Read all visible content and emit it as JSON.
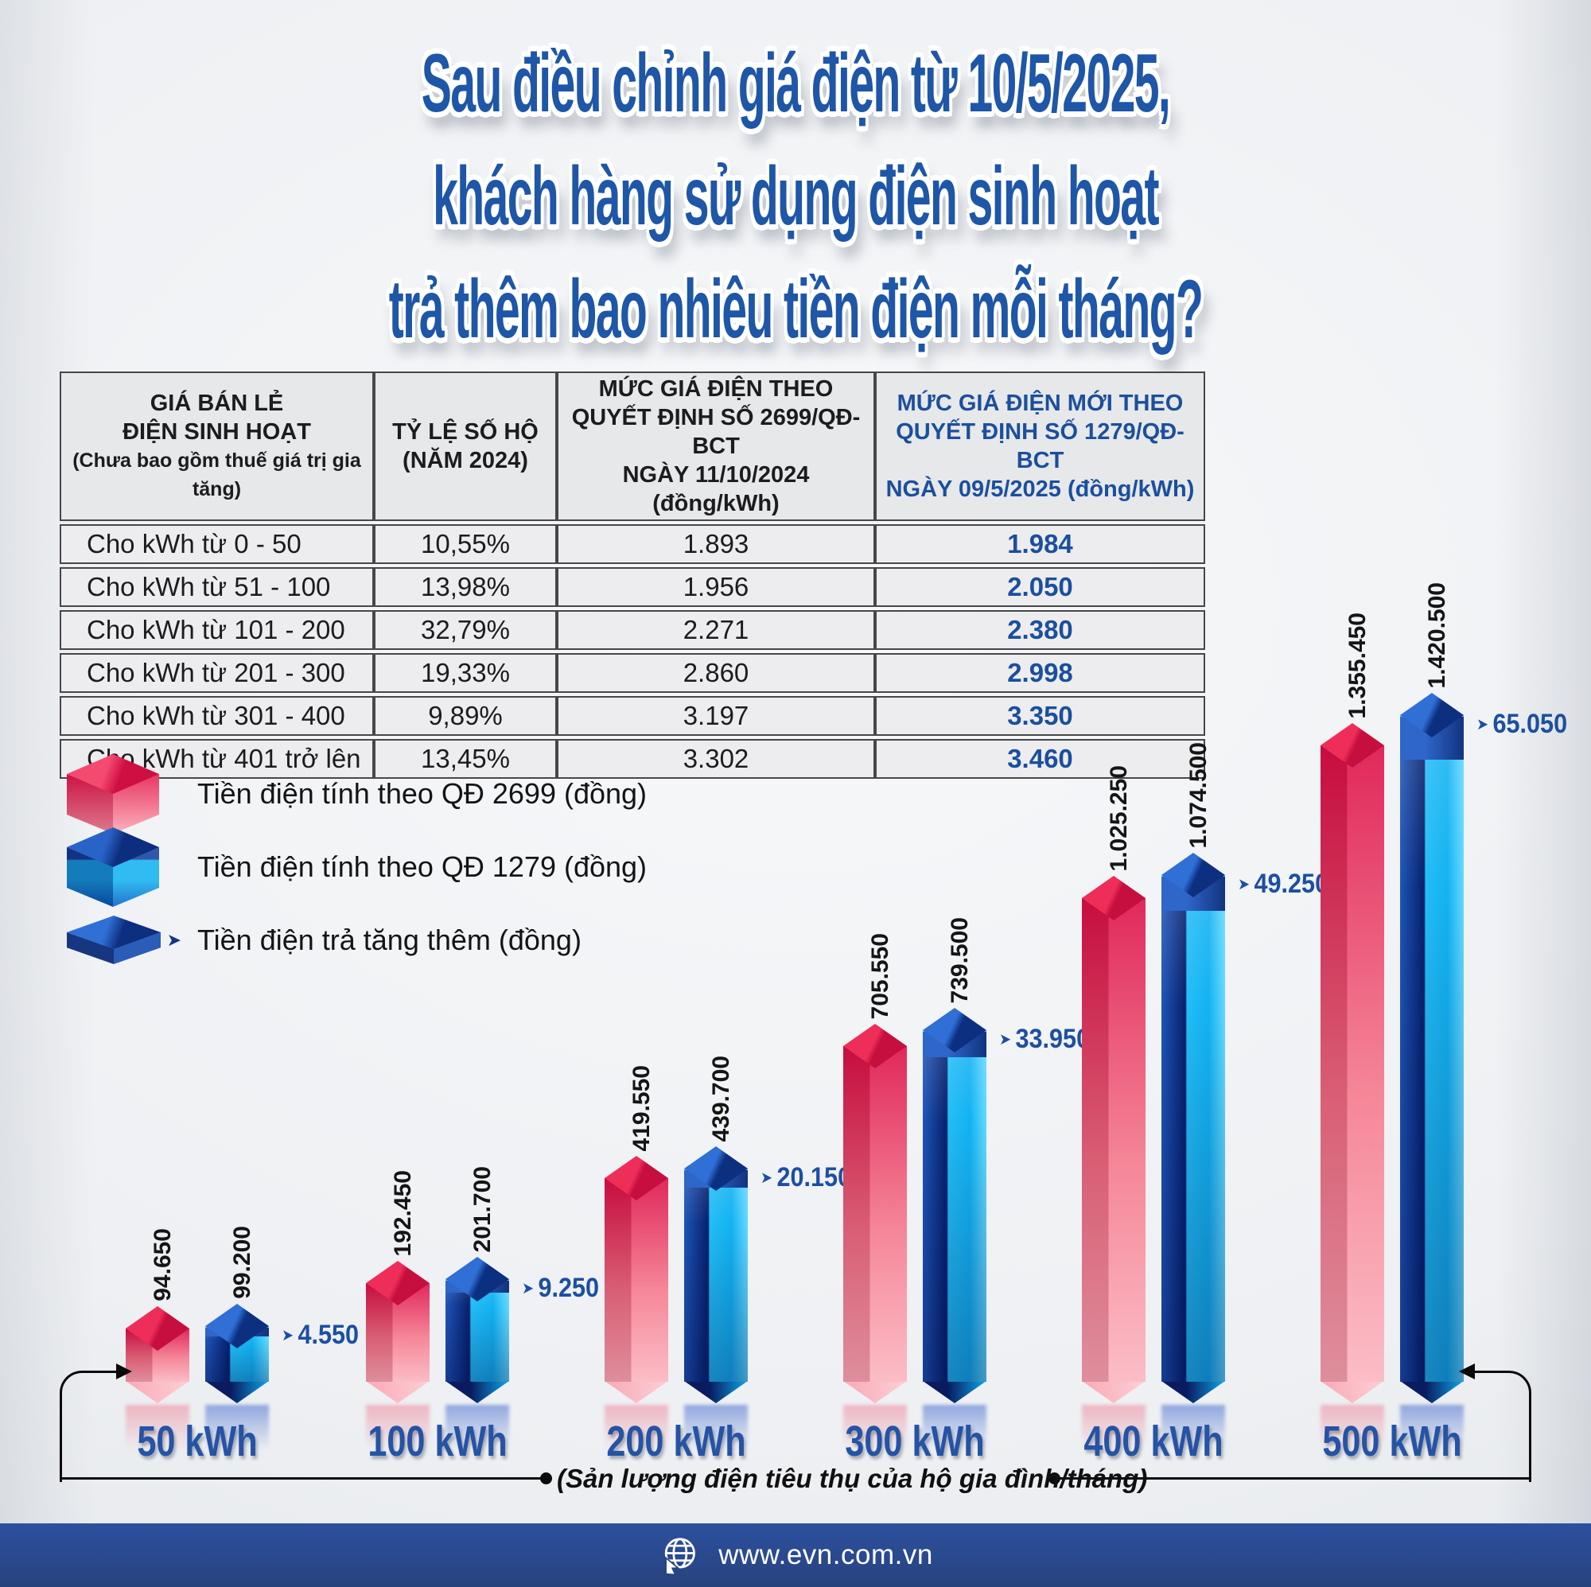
{
  "title": {
    "line1": "Sau điều chỉnh giá điện từ 10/5/2025,",
    "line2": "khách hàng sử dụng điện sinh hoạt",
    "line3": "trả thêm bao nhiêu tiền điện mỗi tháng?"
  },
  "table": {
    "headers": {
      "col1": {
        "line1": "GIÁ BÁN LẺ",
        "line2": "ĐIỆN SINH HOẠT",
        "note": "(Chưa bao gồm thuế giá trị gia tăng)"
      },
      "col2": {
        "line1": "TỶ LỆ SỐ HỘ",
        "line2": "(NĂM 2024)"
      },
      "col3": {
        "line1": "MỨC GIÁ ĐIỆN THEO",
        "line2": "QUYẾT ĐỊNH SỐ 2699/QĐ-BCT",
        "line3": "NGÀY 11/10/2024 (đồng/kWh)"
      },
      "col4": {
        "line1": "MỨC GIÁ ĐIỆN MỚI THEO",
        "line2": "QUYẾT ĐỊNH SỐ 1279/QĐ-BCT",
        "line3": "NGÀY 09/5/2025 (đồng/kWh)"
      }
    },
    "rows": [
      [
        "Cho kWh từ 0 - 50",
        "10,55%",
        "1.893",
        "1.984"
      ],
      [
        "Cho kWh từ 51 - 100",
        "13,98%",
        "1.956",
        "2.050"
      ],
      [
        "Cho kWh từ 101 - 200",
        "32,79%",
        "2.271",
        "2.380"
      ],
      [
        "Cho kWh từ 201 - 300",
        "19,33%",
        "2.860",
        "2.998"
      ],
      [
        "Cho kWh từ 301 - 400",
        "9,89%",
        "3.197",
        "3.350"
      ],
      [
        "Cho kWh từ 401 trở lên",
        "13,45%",
        "3.302",
        "3.460"
      ]
    ]
  },
  "legend": {
    "items": [
      {
        "icon": "red-cube",
        "label": "Tiền điện tính theo QĐ 2699 (đồng)"
      },
      {
        "icon": "blue-cube",
        "label": "Tiền điện tính theo QĐ 1279 (đồng)"
      },
      {
        "icon": "navy-slab",
        "label": "Tiền điện trả tăng thêm (đồng)"
      }
    ]
  },
  "chart_data": {
    "type": "bar",
    "categories": [
      "50 kWh",
      "100 kWh",
      "200 kWh",
      "300 kWh",
      "400 kWh",
      "500 kWh"
    ],
    "series": [
      {
        "name": "Tiền điện tính theo QĐ 2699 (đồng)",
        "color": "#e01648",
        "values": [
          94650,
          192450,
          419550,
          705550,
          1025250,
          1355450
        ],
        "labels": [
          "94.650",
          "192.450",
          "419.550",
          "705.550",
          "1.025.250",
          "1.355.450"
        ]
      },
      {
        "name": "Tiền điện tính theo QĐ 1279 (đồng)",
        "color": "#12b2f2",
        "values": [
          99200,
          201700,
          439700,
          739500,
          1074500,
          1420500
        ],
        "labels": [
          "99.200",
          "201.700",
          "439.700",
          "739.500",
          "1.074.500",
          "1.420.500"
        ]
      },
      {
        "name": "Tiền điện trả tăng thêm (đồng)",
        "color": "#123a8c",
        "values": [
          4550,
          9250,
          20150,
          33950,
          49250,
          65050
        ],
        "labels": [
          "4.550",
          "9.250",
          "20.150",
          "33.950",
          "49.250",
          "65.050"
        ]
      }
    ],
    "xlabel": "(Sản lượng điện tiêu thụ của hộ gia đình/tháng)",
    "ylabel": "",
    "grid": false,
    "legend_position": "upper-left"
  },
  "icons": {
    "increase_arrow": "➤"
  },
  "footer": {
    "url": "www.evn.com.vn"
  },
  "colors": {
    "title_blue": "#1e56a8",
    "table_new_price": "#1b4f9e",
    "axis_label_blue": "#2553a5",
    "increase_blue": "#1c4fa1",
    "footer_bg": "#2a4a94",
    "bar_red": "#e01648",
    "bar_cyan": "#12b2f2",
    "bar_navy": "#123a8c"
  }
}
